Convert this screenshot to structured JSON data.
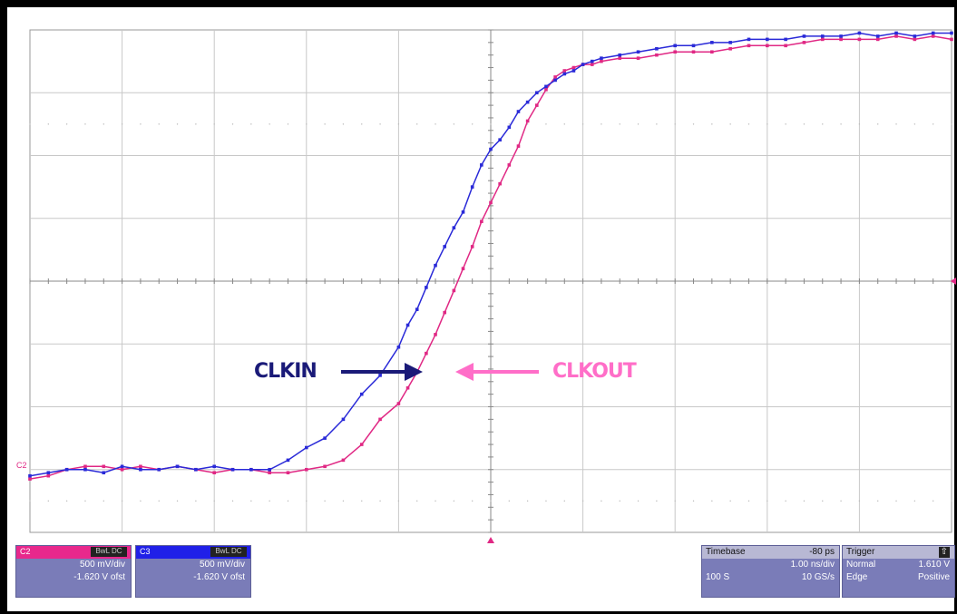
{
  "annotations": {
    "clkin": "CLKIN",
    "clkout": "CLKOUT"
  },
  "channel_marker": "C2",
  "channels": [
    {
      "tag": "C2",
      "mode": "BwL DC",
      "scale": "500 mV/div",
      "offset": "-1.620 V ofst",
      "color": "#e8288c"
    },
    {
      "tag": "C3",
      "mode": "BwL DC",
      "scale": "500 mV/div",
      "offset": "-1.620 V ofst",
      "color": "#2020e8"
    }
  ],
  "timebase": {
    "label": "Timebase",
    "delay": "-80 ps",
    "scale": "1.00 ns/div",
    "samples": "100 S",
    "rate": "10 GS/s"
  },
  "trigger": {
    "label": "Trigger",
    "icon": "trigger-slope-icon",
    "mode": "Normal",
    "level": "1.610 V",
    "type": "Edge",
    "slope": "Positive"
  },
  "colors": {
    "clkin": "#2a2ad8",
    "clkout": "#e02884",
    "grid": "#c8c8c8",
    "clkin_label": "#1a1a78",
    "clkout_label": "#ff6ec8"
  },
  "chart_data": {
    "type": "line",
    "x_divisions": 10,
    "y_divisions": 8,
    "xlim": [
      -5,
      5
    ],
    "ylim": [
      -4,
      4
    ],
    "grid": true,
    "series": [
      {
        "name": "CLKIN",
        "x": [
          -5,
          -4.8,
          -4.6,
          -4.4,
          -4.2,
          -4.0,
          -3.8,
          -3.6,
          -3.4,
          -3.2,
          -3.0,
          -2.8,
          -2.6,
          -2.4,
          -2.2,
          -2.0,
          -1.8,
          -1.6,
          -1.4,
          -1.2,
          -1.0,
          -0.9,
          -0.8,
          -0.7,
          -0.6,
          -0.5,
          -0.4,
          -0.3,
          -0.2,
          -0.1,
          0.0,
          0.1,
          0.2,
          0.3,
          0.4,
          0.5,
          0.6,
          0.7,
          0.8,
          0.9,
          1.0,
          1.1,
          1.2,
          1.4,
          1.6,
          1.8,
          2.0,
          2.2,
          2.4,
          2.6,
          2.8,
          3.0,
          3.2,
          3.4,
          3.6,
          3.8,
          4.0,
          4.2,
          4.4,
          4.6,
          4.8,
          5.0
        ],
        "y": [
          -3.1,
          -3.05,
          -3.0,
          -3.0,
          -3.05,
          -2.95,
          -3.0,
          -3.0,
          -2.95,
          -3.0,
          -2.95,
          -3.0,
          -3.0,
          -3.0,
          -2.85,
          -2.65,
          -2.5,
          -2.2,
          -1.8,
          -1.5,
          -1.05,
          -0.7,
          -0.45,
          -0.1,
          0.25,
          0.55,
          0.85,
          1.1,
          1.5,
          1.85,
          2.1,
          2.25,
          2.45,
          2.7,
          2.85,
          3.0,
          3.1,
          3.2,
          3.3,
          3.35,
          3.45,
          3.5,
          3.55,
          3.6,
          3.65,
          3.7,
          3.75,
          3.75,
          3.8,
          3.8,
          3.85,
          3.85,
          3.85,
          3.9,
          3.9,
          3.9,
          3.95,
          3.9,
          3.95,
          3.9,
          3.95,
          3.95
        ]
      },
      {
        "name": "CLKOUT",
        "x": [
          -5,
          -4.8,
          -4.6,
          -4.4,
          -4.2,
          -4.0,
          -3.8,
          -3.6,
          -3.4,
          -3.2,
          -3.0,
          -2.8,
          -2.6,
          -2.4,
          -2.2,
          -2.0,
          -1.8,
          -1.6,
          -1.4,
          -1.2,
          -1.0,
          -0.9,
          -0.8,
          -0.7,
          -0.6,
          -0.5,
          -0.4,
          -0.3,
          -0.2,
          -0.1,
          0.0,
          0.1,
          0.2,
          0.3,
          0.4,
          0.5,
          0.6,
          0.7,
          0.8,
          0.9,
          1.0,
          1.1,
          1.2,
          1.4,
          1.6,
          1.8,
          2.0,
          2.2,
          2.4,
          2.6,
          2.8,
          3.0,
          3.2,
          3.4,
          3.6,
          3.8,
          4.0,
          4.2,
          4.4,
          4.6,
          4.8,
          5.0
        ],
        "y": [
          -3.15,
          -3.1,
          -3.0,
          -2.95,
          -2.95,
          -3.0,
          -2.95,
          -3.0,
          -2.95,
          -3.0,
          -3.05,
          -3.0,
          -3.0,
          -3.05,
          -3.05,
          -3.0,
          -2.95,
          -2.85,
          -2.6,
          -2.2,
          -1.95,
          -1.7,
          -1.45,
          -1.15,
          -0.85,
          -0.5,
          -0.15,
          0.2,
          0.55,
          0.95,
          1.25,
          1.55,
          1.85,
          2.15,
          2.55,
          2.8,
          3.05,
          3.25,
          3.35,
          3.4,
          3.45,
          3.45,
          3.5,
          3.55,
          3.55,
          3.6,
          3.65,
          3.65,
          3.65,
          3.7,
          3.75,
          3.75,
          3.75,
          3.8,
          3.85,
          3.85,
          3.85,
          3.85,
          3.9,
          3.85,
          3.9,
          3.85
        ]
      }
    ]
  }
}
